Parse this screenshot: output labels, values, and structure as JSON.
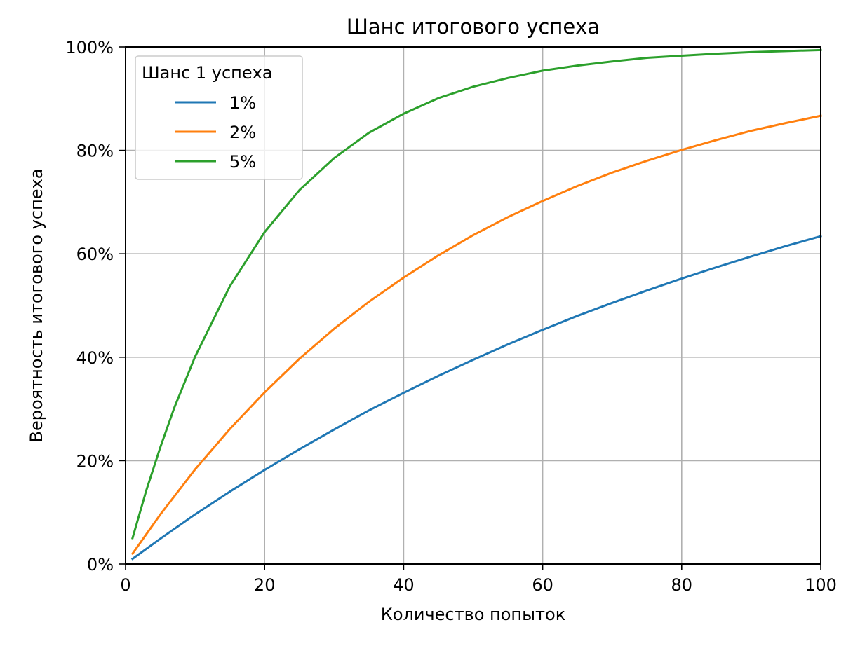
{
  "chart_data": {
    "type": "line",
    "title": "Шанс итогового успеха",
    "xlabel": "Количество попыток",
    "ylabel": "Вероятность итогового успеха",
    "xlim": [
      0,
      100
    ],
    "ylim": [
      0,
      100
    ],
    "x_ticks": [
      "0",
      "20",
      "40",
      "60",
      "80",
      "100"
    ],
    "y_ticks": [
      "0%",
      "20%",
      "40%",
      "60%",
      "80%",
      "100%"
    ],
    "grid": true,
    "legend": {
      "title": "Шанс 1 успеха",
      "position": "top-left"
    },
    "series": [
      {
        "name": "1%",
        "color": "#1f77b4",
        "x": [
          1,
          5,
          10,
          15,
          20,
          25,
          30,
          35,
          40,
          45,
          50,
          55,
          60,
          65,
          70,
          75,
          80,
          85,
          90,
          95,
          100
        ],
        "y": [
          1.0,
          4.9,
          9.6,
          14.0,
          18.2,
          22.2,
          26.0,
          29.7,
          33.1,
          36.4,
          39.5,
          42.5,
          45.3,
          48.0,
          50.5,
          52.9,
          55.2,
          57.4,
          59.5,
          61.5,
          63.4
        ]
      },
      {
        "name": "2%",
        "color": "#ff7f0e",
        "x": [
          1,
          5,
          10,
          15,
          20,
          25,
          30,
          35,
          40,
          45,
          50,
          55,
          60,
          65,
          70,
          75,
          80,
          85,
          90,
          95,
          100
        ],
        "y": [
          2.0,
          9.6,
          18.3,
          26.1,
          33.2,
          39.7,
          45.5,
          50.7,
          55.4,
          59.7,
          63.6,
          67.1,
          70.2,
          73.1,
          75.7,
          78.0,
          80.1,
          82.0,
          83.8,
          85.3,
          86.7
        ]
      },
      {
        "name": "5%",
        "color": "#2ca02c",
        "x": [
          1,
          3,
          5,
          7,
          10,
          15,
          20,
          25,
          30,
          35,
          40,
          45,
          50,
          55,
          60,
          65,
          70,
          75,
          80,
          85,
          90,
          95,
          100
        ],
        "y": [
          5.0,
          14.3,
          22.6,
          30.2,
          40.1,
          53.7,
          64.2,
          72.3,
          78.5,
          83.4,
          87.1,
          90.1,
          92.3,
          94.0,
          95.4,
          96.4,
          97.2,
          97.9,
          98.3,
          98.7,
          99.0,
          99.2,
          99.4
        ]
      }
    ]
  }
}
